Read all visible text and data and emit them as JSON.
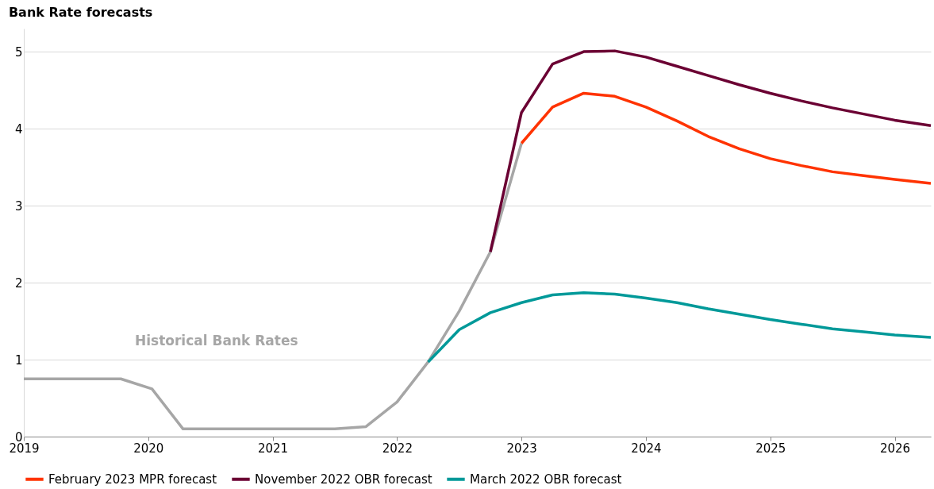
{
  "chart_data": {
    "type": "line",
    "title": "Bank Rate forecasts",
    "xlim": [
      2019,
      2026.29
    ],
    "xticks": [
      2019,
      2020,
      2021,
      2022,
      2023,
      2024,
      2025,
      2026
    ],
    "ylim": [
      0,
      5.3
    ],
    "yticks": [
      0,
      1,
      2,
      3,
      4,
      5
    ],
    "grid": "y",
    "legend": "bottom",
    "marker": "none",
    "line_style": "solid",
    "series": [
      {
        "name": "Historical Bank Rates",
        "color": "#a6a6a6",
        "x": [
          2019,
          2019.25,
          2019.5,
          2019.78,
          2020.03,
          2020.28,
          2020.5,
          2020.75,
          2021,
          2021.25,
          2021.5,
          2021.75,
          2022,
          2022.25,
          2022.5,
          2022.75,
          2023
        ],
        "values": [
          0.75,
          0.75,
          0.75,
          0.75,
          0.62,
          0.1,
          0.1,
          0.1,
          0.1,
          0.1,
          0.1,
          0.13,
          0.45,
          0.97,
          1.63,
          2.4,
          3.81
        ]
      },
      {
        "name": "February 2023 MPR forecast",
        "color": "#ff3300",
        "x": [
          2023,
          2023.25,
          2023.5,
          2023.75,
          2024,
          2024.25,
          2024.5,
          2024.75,
          2025,
          2025.25,
          2025.5,
          2025.75,
          2026,
          2026.29
        ],
        "values": [
          3.81,
          4.28,
          4.46,
          4.42,
          4.28,
          4.1,
          3.9,
          3.74,
          3.61,
          3.52,
          3.44,
          3.39,
          3.34,
          3.29
        ]
      },
      {
        "name": "November 2022 OBR forecast",
        "color": "#6b0033",
        "x": [
          2022.75,
          2023,
          2023.25,
          2023.5,
          2023.75,
          2024,
          2024.25,
          2024.5,
          2024.75,
          2025,
          2025.25,
          2025.5,
          2025.75,
          2026,
          2026.29
        ],
        "values": [
          2.4,
          4.21,
          4.84,
          5.0,
          5.01,
          4.93,
          4.81,
          4.69,
          4.57,
          4.46,
          4.36,
          4.27,
          4.19,
          4.11,
          4.04
        ]
      },
      {
        "name": "March 2022 OBR forecast",
        "color": "#009999",
        "x": [
          2022.25,
          2022.5,
          2022.75,
          2023,
          2023.25,
          2023.5,
          2023.75,
          2024,
          2024.25,
          2024.5,
          2024.75,
          2025,
          2025.25,
          2025.5,
          2025.75,
          2026,
          2026.29
        ],
        "values": [
          0.97,
          1.39,
          1.61,
          1.74,
          1.84,
          1.87,
          1.85,
          1.8,
          1.74,
          1.66,
          1.59,
          1.52,
          1.46,
          1.4,
          1.36,
          1.32,
          1.29
        ]
      }
    ]
  }
}
